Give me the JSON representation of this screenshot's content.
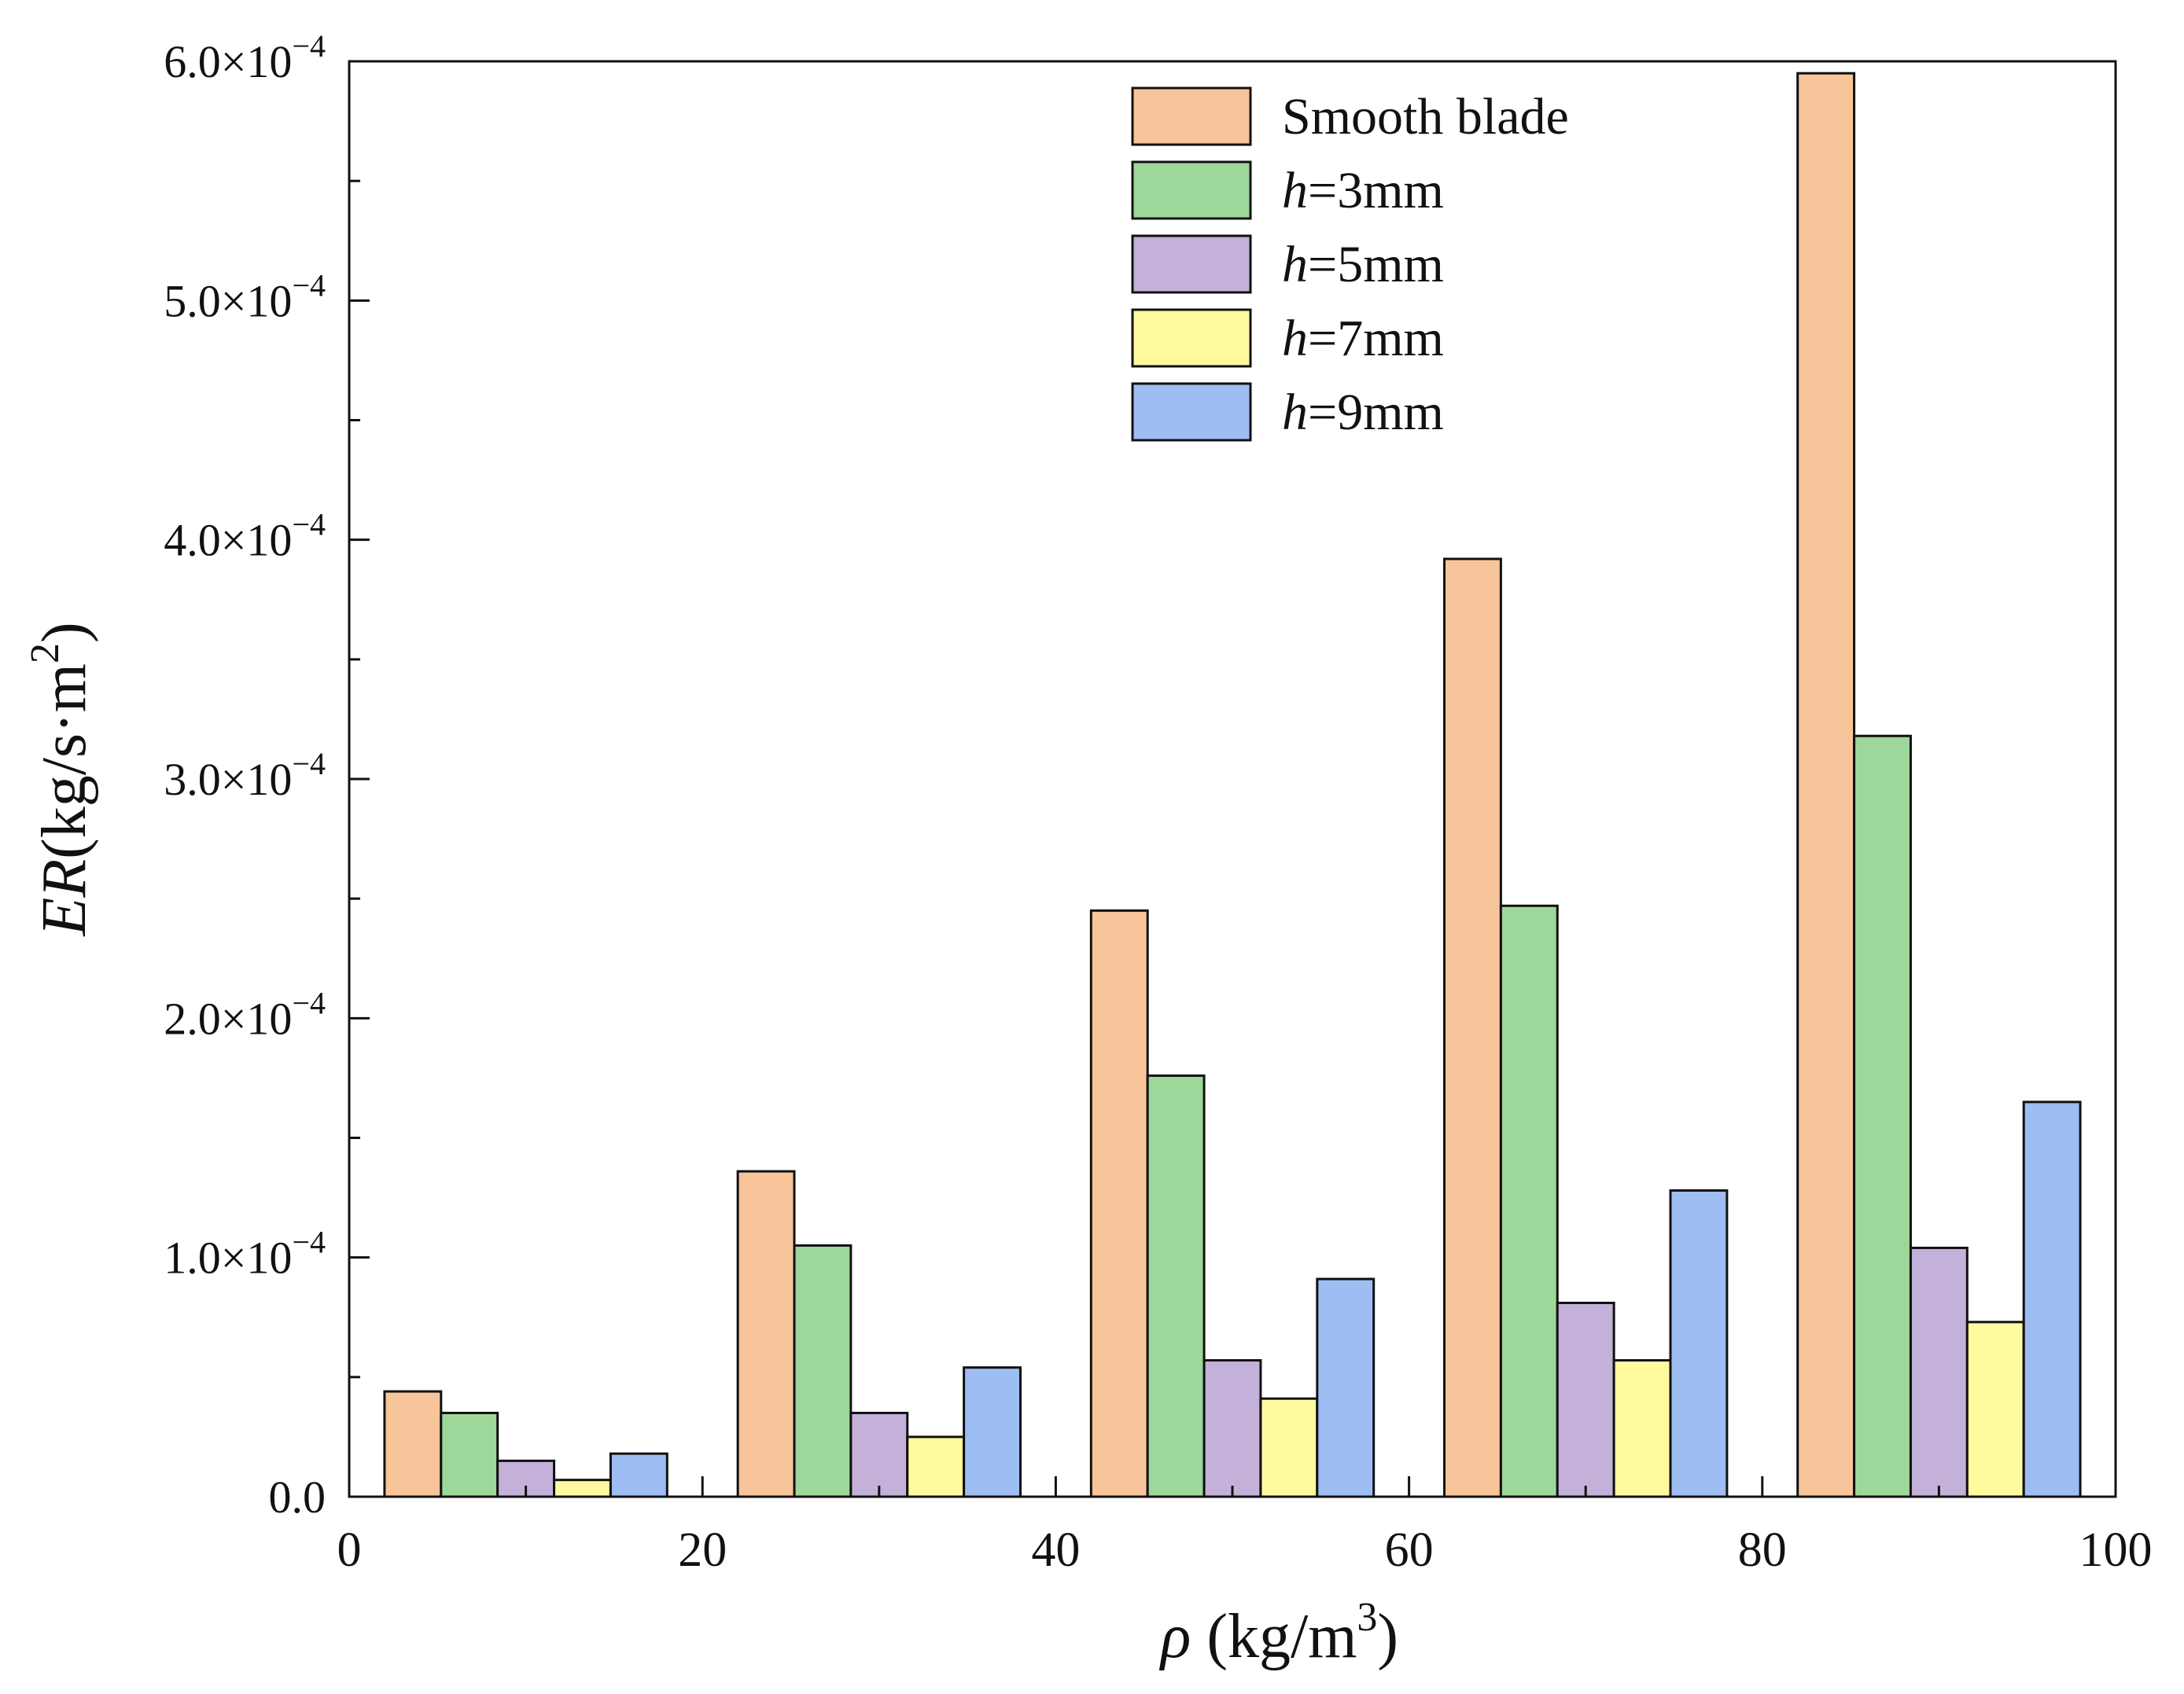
{
  "chart_data": {
    "type": "bar",
    "title": "",
    "categories": [
      "10",
      "30",
      "50",
      "70",
      "90"
    ],
    "x_centers": [
      10,
      30,
      50,
      70,
      90
    ],
    "bar_width": 3.2,
    "series": [
      {
        "name": "Smooth blade",
        "name_prefix": "",
        "name_suffix": "Smooth blade",
        "color": "#F8C499",
        "values": [
          4.4e-05,
          0.000136,
          0.000245,
          0.000392,
          0.000595
        ]
      },
      {
        "name": "h=3mm",
        "name_prefix": "h",
        "name_suffix": "=3mm",
        "color": "#9ED79A",
        "values": [
          3.5e-05,
          0.000105,
          0.000176,
          0.000247,
          0.000318
        ]
      },
      {
        "name": "h=5mm",
        "name_prefix": "h",
        "name_suffix": "=5mm",
        "color": "#C3B1D9",
        "values": [
          1.5e-05,
          3.5e-05,
          5.7e-05,
          8.1e-05,
          0.000104
        ]
      },
      {
        "name": "h=7mm",
        "name_prefix": "h",
        "name_suffix": "=7mm",
        "color": "#FFFA9E",
        "values": [
          7e-06,
          2.5e-05,
          4.1e-05,
          5.7e-05,
          7.3e-05
        ]
      },
      {
        "name": "h=9mm",
        "name_prefix": "h",
        "name_suffix": "=9mm",
        "color": "#9EBDF2",
        "values": [
          1.8e-05,
          5.4e-05,
          9.1e-05,
          0.000128,
          0.000165
        ]
      }
    ],
    "xlim": [
      0,
      100
    ],
    "ylim": [
      0,
      0.0006
    ],
    "x_ticks": [
      0,
      20,
      40,
      60,
      80,
      100
    ],
    "x_minor_ticks": [
      10,
      30,
      50,
      70,
      90
    ],
    "y_ticks": [
      0,
      0.0001,
      0.0002,
      0.0003,
      0.0004,
      0.0005,
      0.0006
    ],
    "y_minor_ticks": [
      5e-05,
      0.00015,
      0.00025,
      0.00035,
      0.00045,
      0.00055
    ],
    "x_tick_labels": [
      "0",
      "20",
      "40",
      "60",
      "80",
      "100"
    ],
    "y_tick_labels": [
      {
        "mant": "0.0",
        "exp": ""
      },
      {
        "mant": "1.0×10",
        "exp": "−4"
      },
      {
        "mant": "2.0×10",
        "exp": "−4"
      },
      {
        "mant": "3.0×10",
        "exp": "−4"
      },
      {
        "mant": "4.0×10",
        "exp": "−4"
      },
      {
        "mant": "5.0×10",
        "exp": "−4"
      },
      {
        "mant": "6.0×10",
        "exp": "−4"
      }
    ],
    "xlabel": {
      "symbol": "ρ",
      "unit_open": " (kg/m",
      "unit_sup": "3",
      "unit_close": ")"
    },
    "ylabel": {
      "italic": "ER",
      "unit_open": "(kg/s·m",
      "unit_sup": "2",
      "unit_close": ")"
    },
    "legend_position": "top-center",
    "grid": false
  }
}
